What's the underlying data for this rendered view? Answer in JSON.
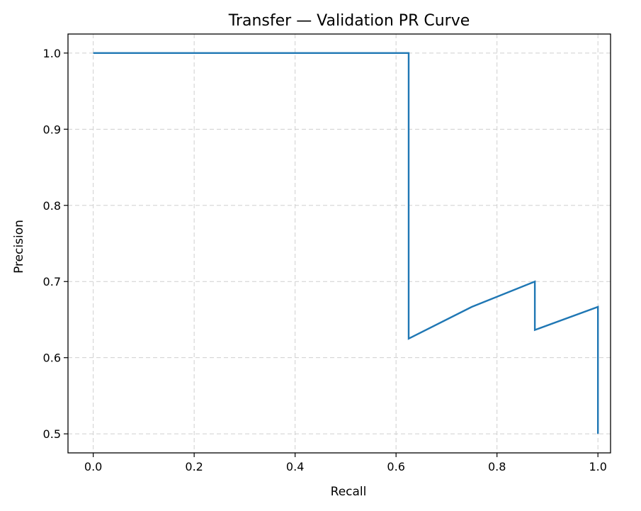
{
  "chart_data": {
    "type": "line",
    "title": "Transfer — Validation PR Curve",
    "xlabel": "Recall",
    "ylabel": "Precision",
    "xlim": [
      -0.05,
      1.025
    ],
    "ylim": [
      0.475,
      1.025
    ],
    "xticks": [
      0.0,
      0.2,
      0.4,
      0.6,
      0.8,
      1.0
    ],
    "yticks": [
      0.5,
      0.6,
      0.7,
      0.8,
      0.9,
      1.0
    ],
    "xtick_labels": [
      "0.0",
      "0.2",
      "0.4",
      "0.6",
      "0.8",
      "1.0"
    ],
    "ytick_labels": [
      "0.5",
      "0.6",
      "0.7",
      "0.8",
      "0.9",
      "1.0"
    ],
    "grid": true,
    "series": [
      {
        "color": "#1f77b4",
        "x": [
          0.0,
          0.625,
          0.625,
          0.75,
          0.875,
          0.875,
          1.0,
          1.0
        ],
        "y": [
          1.0,
          1.0,
          0.625,
          0.6667,
          0.7,
          0.6364,
          0.6667,
          0.5
        ]
      }
    ]
  }
}
